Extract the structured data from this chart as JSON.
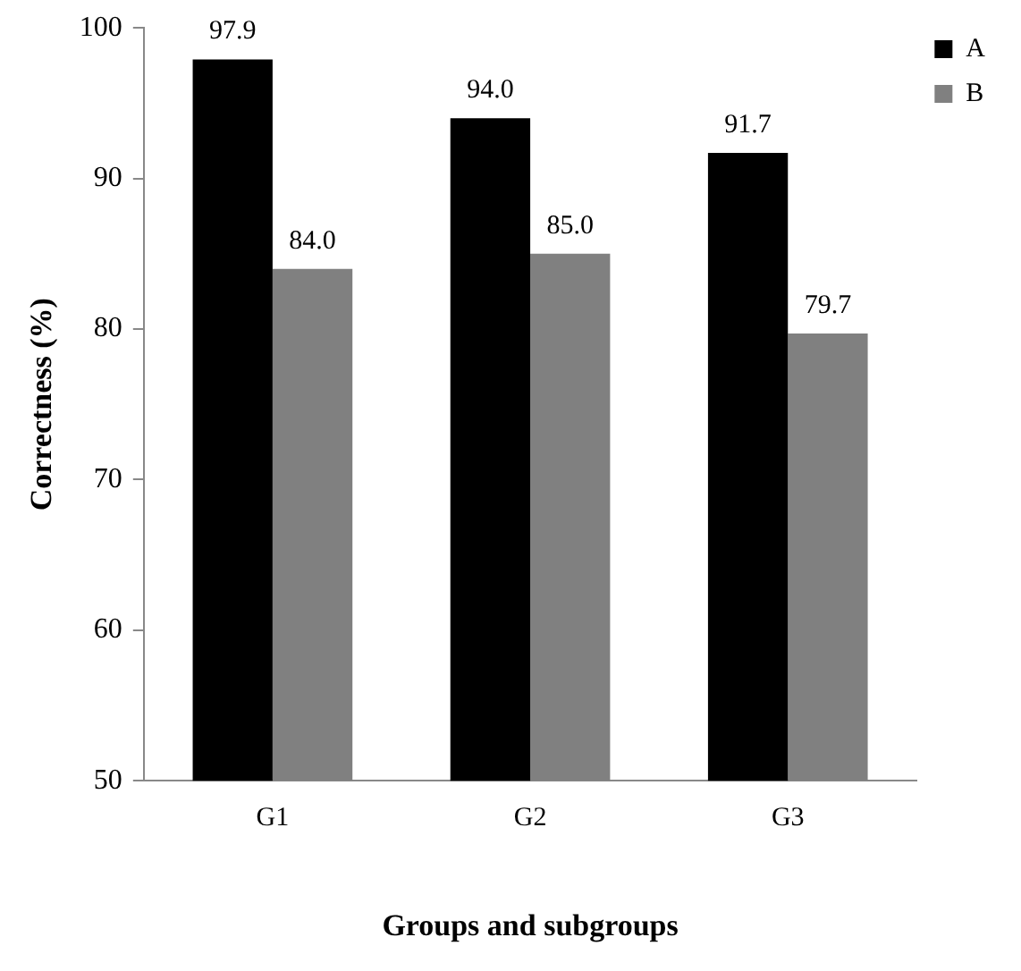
{
  "chart_data": {
    "type": "bar",
    "xlabel": "Groups and subgroups",
    "ylabel": "Correctness (%)",
    "categories": [
      "G1",
      "G2",
      "G3"
    ],
    "series": [
      {
        "name": "A",
        "color": "#000000",
        "values": [
          97.9,
          94.0,
          91.7
        ],
        "value_labels": [
          "97.9",
          "94.0",
          "91.7"
        ]
      },
      {
        "name": "B",
        "color": "#808080",
        "values": [
          84.0,
          85.0,
          79.7
        ],
        "value_labels": [
          "84.0",
          "85.0",
          "79.7"
        ]
      }
    ],
    "ylim": [
      50,
      100
    ],
    "yticks": [
      50,
      60,
      70,
      80,
      90,
      100
    ],
    "grid": false,
    "legend": "top right"
  }
}
